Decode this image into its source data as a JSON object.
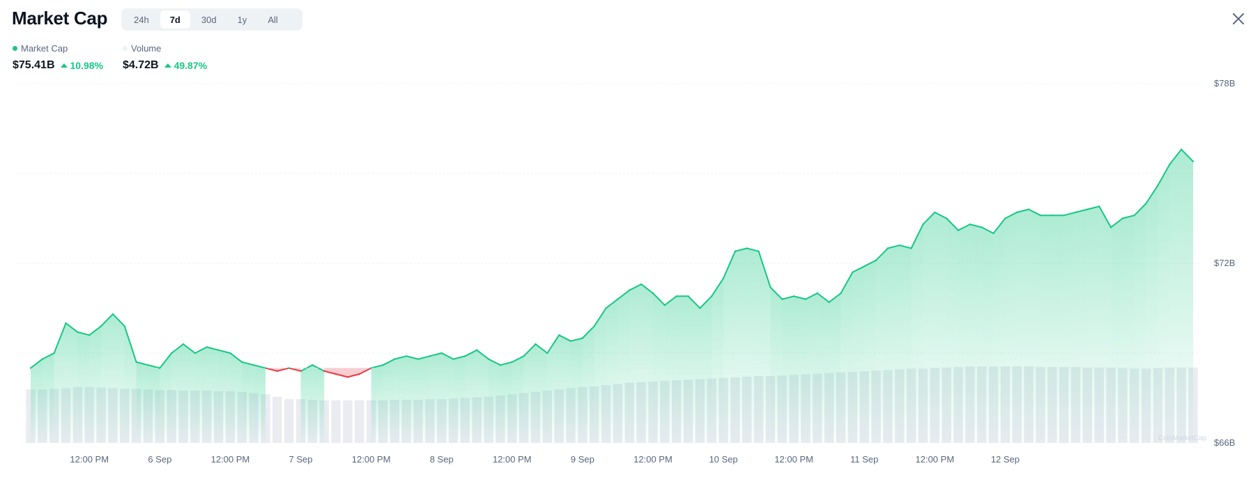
{
  "header": {
    "title": "Market Cap",
    "tabs": [
      {
        "label": "24h",
        "active": false
      },
      {
        "label": "7d",
        "active": true
      },
      {
        "label": "30d",
        "active": false
      },
      {
        "label": "1y",
        "active": false
      },
      {
        "label": "All",
        "active": false
      }
    ],
    "close_icon": "close-icon"
  },
  "legend": {
    "market_cap_label": "Market Cap",
    "volume_label": "Volume",
    "market_cap_color": "#16c784",
    "volume_color": "#eff2f5"
  },
  "stats": {
    "market_cap_value": "$75.41B",
    "market_cap_change": "10.98%",
    "volume_value": "$4.72B",
    "volume_change": "49.87%",
    "up_color": "#16c784",
    "down_color": "#ea3943"
  },
  "watermark": "CoinMarketCap",
  "chart_data": {
    "type": "area",
    "baseline": 68.5,
    "ylim": [
      66,
      78
    ],
    "yticks": [
      "$78B",
      "$72B",
      "$66B"
    ],
    "xticks": [
      "12:00 PM",
      "6 Sep",
      "12:00 PM",
      "7 Sep",
      "12:00 PM",
      "8 Sep",
      "12:00 PM",
      "9 Sep",
      "12:00 PM",
      "10 Sep",
      "12:00 PM",
      "11 Sep",
      "12:00 PM",
      "12 Sep"
    ],
    "x_start": "5 Sep 2:00 AM",
    "interval_hours": 2,
    "series": [
      {
        "name": "Market Cap",
        "unit": "B USD",
        "values": [
          68.5,
          68.8,
          69.0,
          70.0,
          69.7,
          69.6,
          69.9,
          70.3,
          69.9,
          68.7,
          68.6,
          68.5,
          69.0,
          69.3,
          69.0,
          69.2,
          69.1,
          69.0,
          68.7,
          68.6,
          68.5,
          68.4,
          68.5,
          68.4,
          68.6,
          68.4,
          68.3,
          68.2,
          68.3,
          68.5,
          68.6,
          68.8,
          68.9,
          68.8,
          68.9,
          69.0,
          68.8,
          68.9,
          69.1,
          68.8,
          68.6,
          68.7,
          68.9,
          69.3,
          69.0,
          69.6,
          69.4,
          69.5,
          69.9,
          70.5,
          70.8,
          71.1,
          71.3,
          71.0,
          70.6,
          70.9,
          70.9,
          70.5,
          70.9,
          71.5,
          72.4,
          72.5,
          72.4,
          71.2,
          70.8,
          70.9,
          70.8,
          71.0,
          70.7,
          71.0,
          71.7,
          71.9,
          72.1,
          72.5,
          72.6,
          72.5,
          73.3,
          73.7,
          73.5,
          73.1,
          73.3,
          73.2,
          73.0,
          73.5,
          73.7,
          73.8,
          73.6,
          73.6,
          73.6,
          73.7,
          73.8,
          73.9,
          73.2,
          73.5,
          73.6,
          74.0,
          74.6,
          75.3,
          75.8,
          75.4
        ]
      },
      {
        "name": "Volume",
        "unit": "relative",
        "values": [
          0.88,
          0.88,
          0.89,
          0.9,
          0.92,
          0.92,
          0.91,
          0.9,
          0.89,
          0.89,
          0.88,
          0.87,
          0.87,
          0.86,
          0.86,
          0.86,
          0.85,
          0.85,
          0.84,
          0.82,
          0.8,
          0.76,
          0.72,
          0.72,
          0.71,
          0.7,
          0.7,
          0.7,
          0.7,
          0.7,
          0.7,
          0.71,
          0.71,
          0.71,
          0.72,
          0.72,
          0.73,
          0.74,
          0.75,
          0.76,
          0.78,
          0.8,
          0.82,
          0.84,
          0.86,
          0.88,
          0.9,
          0.92,
          0.93,
          0.95,
          0.97,
          0.99,
          1.0,
          1.01,
          1.02,
          1.03,
          1.04,
          1.05,
          1.06,
          1.07,
          1.08,
          1.09,
          1.1,
          1.1,
          1.11,
          1.12,
          1.13,
          1.14,
          1.15,
          1.16,
          1.17,
          1.18,
          1.19,
          1.2,
          1.21,
          1.22,
          1.22,
          1.23,
          1.24,
          1.25,
          1.26,
          1.26,
          1.26,
          1.26,
          1.26,
          1.26,
          1.25,
          1.25,
          1.25,
          1.25,
          1.24,
          1.24,
          1.24,
          1.23,
          1.22,
          1.22,
          1.23,
          1.24,
          1.24,
          1.24
        ]
      }
    ],
    "grid": true
  }
}
